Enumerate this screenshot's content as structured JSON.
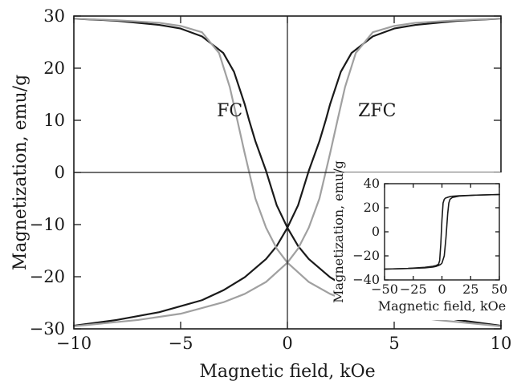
{
  "chart_data": [
    {
      "type": "line",
      "title": "",
      "xlabel": "Magnetic field, kOe",
      "ylabel": "Magnetization, emu/g",
      "xlim": [
        -10,
        10
      ],
      "ylim": [
        -30,
        30
      ],
      "x_ticks": [
        -10,
        -5,
        0,
        5,
        10
      ],
      "y_ticks": [
        -30,
        -20,
        -10,
        0,
        10,
        20,
        30
      ],
      "x_tick_labels": [
        "−10",
        "−5",
        "0",
        "5",
        "10"
      ],
      "y_tick_labels": [
        "−30",
        "−20",
        "−10",
        "0",
        "10",
        "20",
        "30"
      ],
      "grid": false,
      "zero_lines": true,
      "annotations": [
        {
          "text": "FC",
          "x": -2.7,
          "y": 12
        },
        {
          "text": "ZFC",
          "x": 4.2,
          "y": 12
        }
      ],
      "series": [
        {
          "color": "#1a1a1a",
          "x": [
            -10,
            -8,
            -6,
            -5,
            -4,
            -3,
            -2.5,
            -2,
            -1.8,
            -1.5,
            -1,
            -0.5,
            0,
            0.5,
            1,
            2,
            3,
            4,
            6,
            8,
            10
          ],
          "y": [
            29.5,
            29.1,
            28.3,
            27.6,
            26.1,
            22.9,
            19.3,
            13.1,
            10.1,
            6.0,
            0.3,
            -6.3,
            -10.6,
            -14.1,
            -16.6,
            -20.1,
            -22.6,
            -24.5,
            -26.8,
            -28.3,
            -29.4
          ]
        },
        {
          "color": "#1a1a1a",
          "x": [
            -10,
            -8,
            -6,
            -4,
            -3,
            -2,
            -1,
            -0.5,
            0,
            0.5,
            1,
            1.5,
            1.8,
            2,
            2.5,
            3,
            4,
            5,
            6,
            8,
            10
          ],
          "y": [
            -29.4,
            -28.3,
            -26.8,
            -24.5,
            -22.6,
            -20.1,
            -16.6,
            -14.1,
            -10.6,
            -6.3,
            0.3,
            6.0,
            10.1,
            13.1,
            19.3,
            22.9,
            26.1,
            27.6,
            28.3,
            29.1,
            29.5
          ]
        },
        {
          "color": "#a0a0a0",
          "x": [
            -10,
            -8,
            -6,
            -5,
            -4,
            -3.2,
            -2.7,
            -2.35,
            -2,
            -1.5,
            -1,
            -0.5,
            0,
            1,
            2,
            3,
            5,
            7,
            10
          ],
          "y": [
            29.5,
            29.2,
            28.7,
            28.1,
            26.9,
            22.9,
            16.4,
            10.1,
            3.7,
            -5.0,
            -10.6,
            -14.6,
            -17.3,
            -21.0,
            -23.3,
            -24.9,
            -27.1,
            -28.3,
            -29.5
          ]
        },
        {
          "color": "#a0a0a0",
          "x": [
            -10,
            -7,
            -5,
            -3,
            -2,
            -1,
            0,
            0.5,
            1,
            1.5,
            2,
            2.35,
            2.7,
            3.2,
            4,
            5,
            6,
            8,
            10
          ],
          "y": [
            -29.5,
            -28.3,
            -27.1,
            -24.9,
            -23.3,
            -21.0,
            -17.3,
            -14.6,
            -10.6,
            -5.0,
            3.7,
            10.1,
            16.4,
            22.9,
            26.9,
            28.1,
            28.7,
            29.2,
            29.5
          ]
        }
      ]
    },
    {
      "type": "line",
      "title": "",
      "xlabel": "Magnetic field, kOe",
      "ylabel": "Magnetization, emu/g",
      "xlim": [
        -50,
        50
      ],
      "ylim": [
        -40,
        40
      ],
      "x_ticks": [
        -50,
        -25,
        0,
        25,
        50
      ],
      "y_ticks": [
        -40,
        -20,
        0,
        20,
        40
      ],
      "x_tick_labels": [
        "−50",
        "−25",
        "0",
        "25",
        "50"
      ],
      "y_tick_labels": [
        "−40",
        "−20",
        "0",
        "20",
        "40"
      ],
      "grid": false,
      "series": [
        {
          "color": "#1a1a1a",
          "x": [
            -50,
            -30,
            -15,
            -8,
            -5,
            -3,
            -2,
            -1,
            0,
            1,
            2,
            3,
            5,
            8,
            15,
            30,
            50
          ],
          "y": [
            -31,
            -30.5,
            -29.5,
            -28.7,
            -28,
            -27,
            -24,
            -10,
            10,
            24,
            27,
            28,
            28.7,
            29.5,
            30,
            30.5,
            31
          ]
        },
        {
          "color": "#1a1a1a",
          "x": [
            -50,
            -30,
            -15,
            -8,
            -5,
            -3,
            -1,
            0,
            2,
            3.5,
            5,
            6,
            7,
            9,
            15,
            30,
            50
          ],
          "y": [
            -31,
            -30.5,
            -30,
            -29.3,
            -28.7,
            -28,
            -27,
            -26,
            -20,
            -5,
            15,
            24,
            27,
            28.5,
            29.7,
            30.5,
            31
          ]
        }
      ]
    }
  ]
}
